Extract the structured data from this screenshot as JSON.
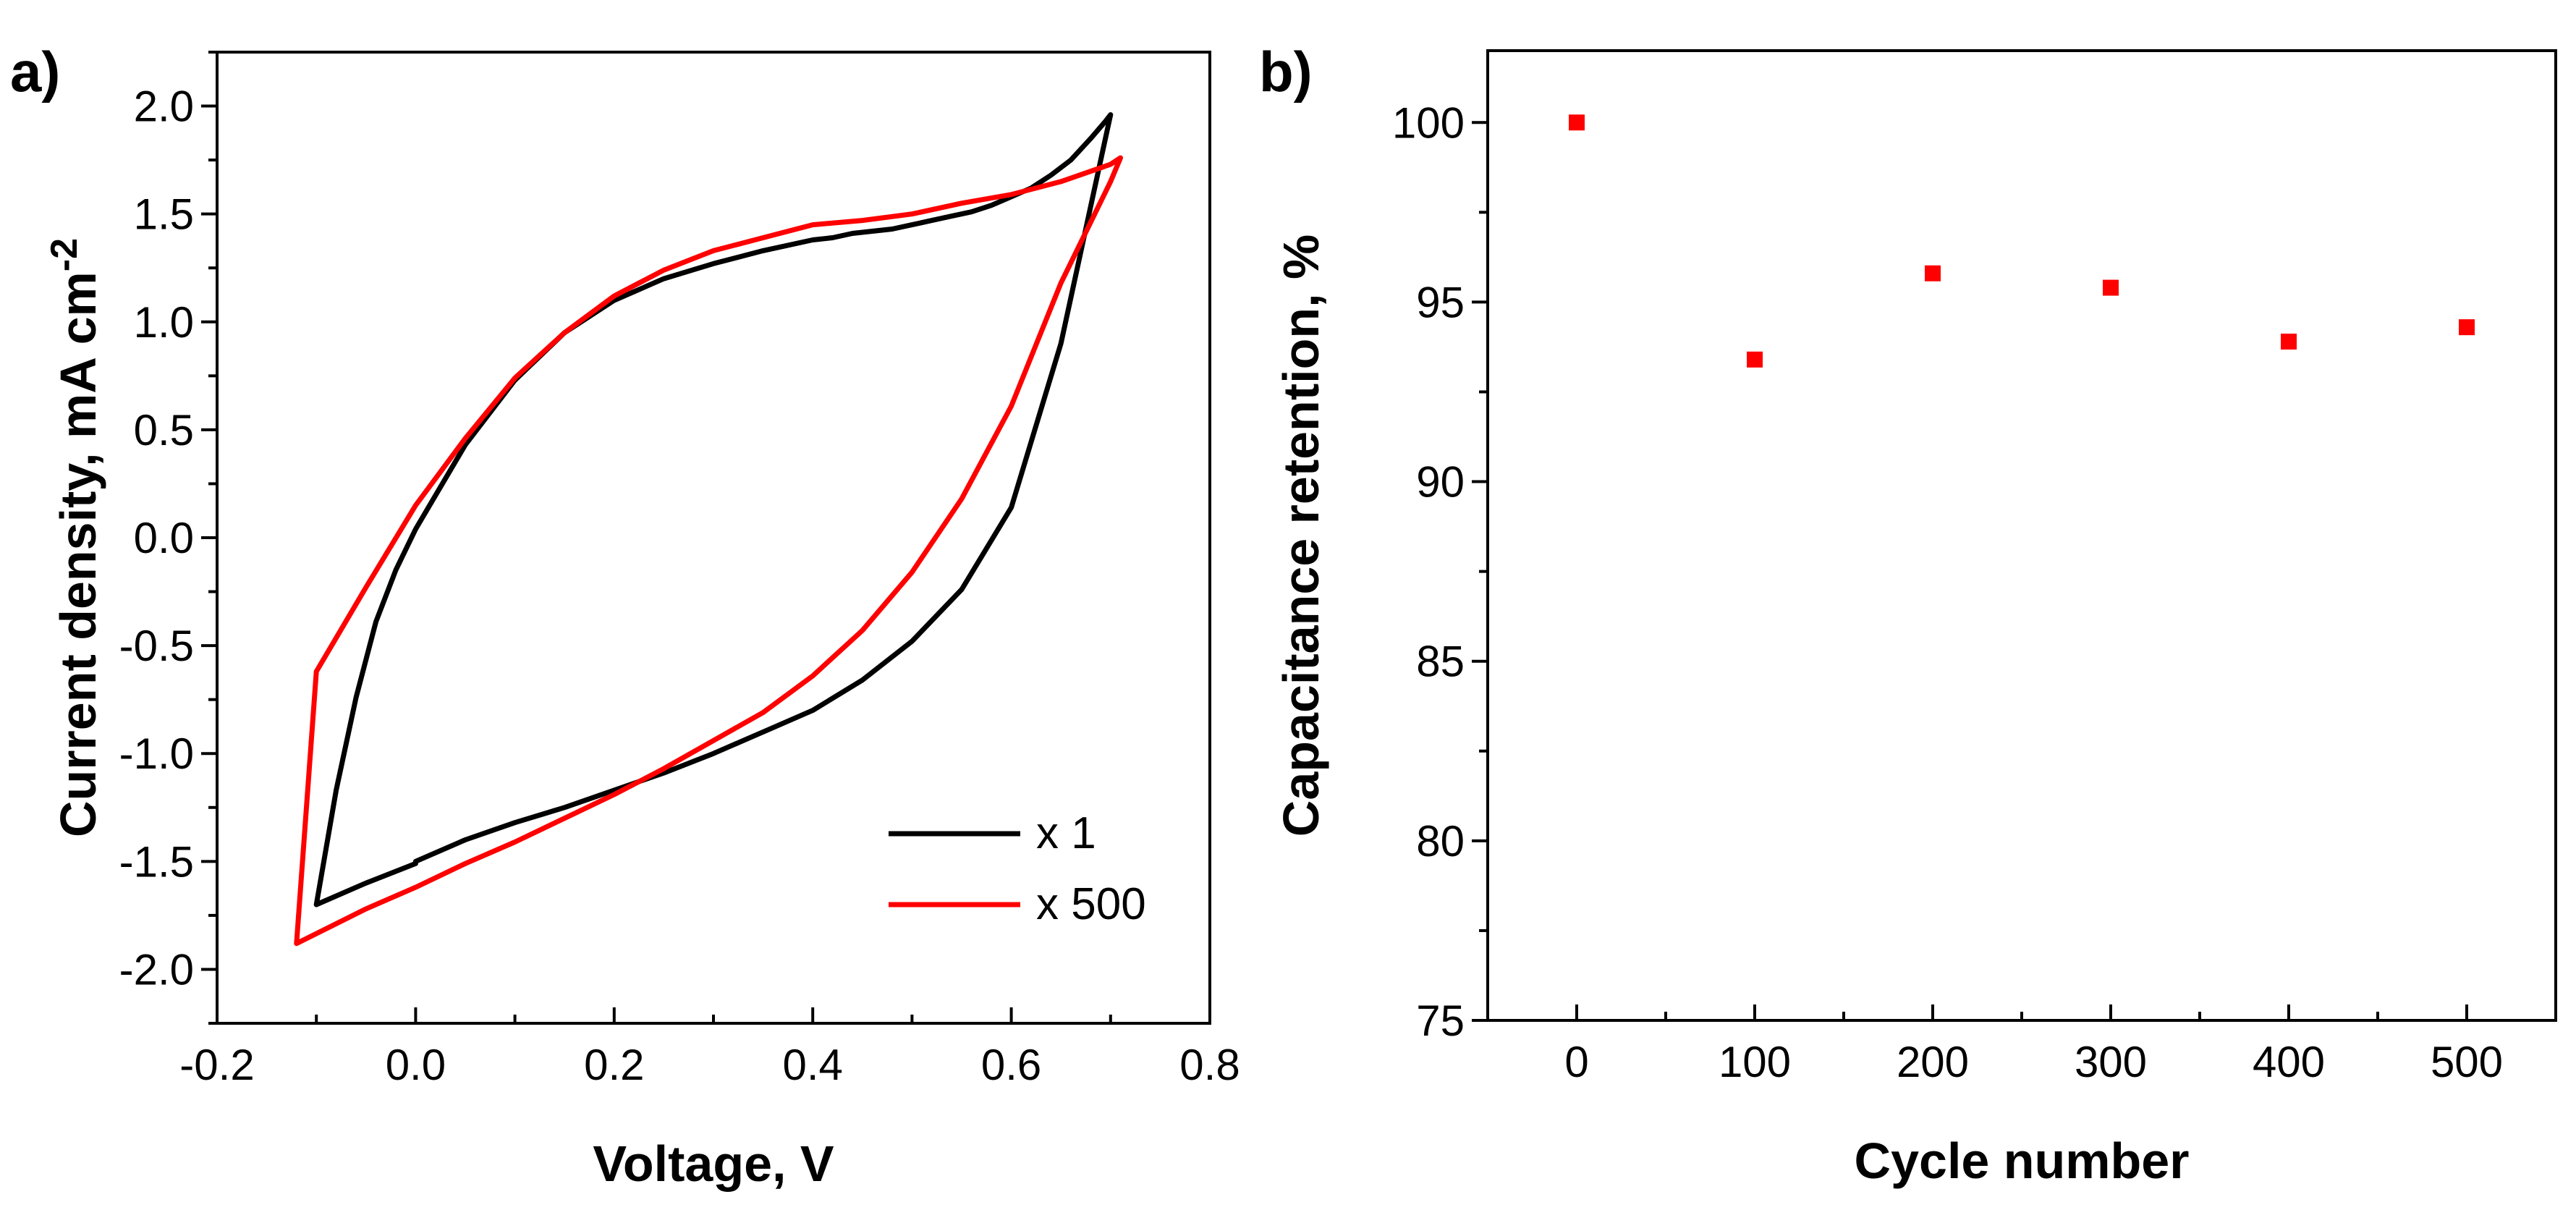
{
  "chart_data": [
    {
      "panel_label": "a)",
      "type": "line",
      "title": "",
      "xlabel": "Voltage, V",
      "ylabel_main": "Current density, mA cm",
      "ylabel_sup": "-2",
      "xlim": [
        -0.2,
        0.8
      ],
      "ylim": [
        -2.25,
        2.25
      ],
      "xticks": [
        -0.2,
        0.0,
        0.2,
        0.4,
        0.6,
        0.8
      ],
      "xtick_labels": [
        "-0.2",
        "0.0",
        "0.2",
        "0.4",
        "0.6",
        "0.8"
      ],
      "yticks": [
        -2.0,
        -1.5,
        -1.0,
        -0.5,
        0.0,
        0.5,
        1.0,
        1.5,
        2.0
      ],
      "ytick_labels": [
        "-2.0",
        "-1.5",
        "-1.0",
        "-0.5",
        "0.0",
        "0.5",
        "1.0",
        "1.5",
        "2.0"
      ],
      "grid": false,
      "legend_position": "bottom-right",
      "series": [
        {
          "name": "x 1",
          "color": "#000000",
          "x": [
            0.0,
            0.05,
            0.1,
            0.15,
            0.2,
            0.25,
            0.3,
            0.35,
            0.4,
            0.45,
            0.5,
            0.55,
            0.6,
            0.65,
            0.7,
            0.695,
            0.68,
            0.66,
            0.64,
            0.62,
            0.6,
            0.58,
            0.56,
            0.54,
            0.52,
            0.5,
            0.48,
            0.46,
            0.44,
            0.42,
            0.4,
            0.35,
            0.3,
            0.25,
            0.2,
            0.15,
            0.1,
            0.05,
            0.0,
            -0.02,
            -0.04,
            -0.06,
            -0.08,
            -0.1,
            -0.05,
            0.0,
            0.0
          ],
          "y": [
            -1.5,
            -1.4,
            -1.32,
            -1.25,
            -1.17,
            -1.09,
            -1.0,
            -0.9,
            -0.8,
            -0.66,
            -0.48,
            -0.24,
            0.14,
            0.9,
            1.96,
            1.93,
            1.85,
            1.75,
            1.68,
            1.62,
            1.58,
            1.54,
            1.51,
            1.49,
            1.47,
            1.45,
            1.43,
            1.42,
            1.41,
            1.39,
            1.38,
            1.33,
            1.27,
            1.2,
            1.1,
            0.95,
            0.73,
            0.43,
            0.04,
            -0.15,
            -0.39,
            -0.74,
            -1.17,
            -1.7,
            -1.6,
            -1.51,
            -1.5
          ]
        },
        {
          "name": "x 500",
          "color": "#ff0000",
          "x": [
            -0.12,
            -0.05,
            0.0,
            0.05,
            0.1,
            0.15,
            0.2,
            0.25,
            0.3,
            0.35,
            0.4,
            0.45,
            0.5,
            0.55,
            0.6,
            0.65,
            0.7,
            0.71,
            0.7,
            0.65,
            0.6,
            0.55,
            0.5,
            0.45,
            0.4,
            0.35,
            0.3,
            0.25,
            0.2,
            0.15,
            0.1,
            0.05,
            0.0,
            -0.05,
            -0.1,
            -0.12
          ],
          "y": [
            -1.88,
            -1.72,
            -1.62,
            -1.51,
            -1.41,
            -1.3,
            -1.19,
            -1.07,
            -0.94,
            -0.81,
            -0.64,
            -0.43,
            -0.16,
            0.18,
            0.61,
            1.18,
            1.65,
            1.76,
            1.73,
            1.65,
            1.59,
            1.55,
            1.5,
            1.47,
            1.45,
            1.39,
            1.33,
            1.24,
            1.12,
            0.95,
            0.74,
            0.46,
            0.15,
            -0.23,
            -0.62,
            -1.88
          ]
        }
      ]
    },
    {
      "panel_label": "b)",
      "type": "scatter",
      "title": "",
      "xlabel": "Cycle number",
      "ylabel": "Capacitance retention, %",
      "xlim": [
        -50,
        550
      ],
      "ylim": [
        75,
        102
      ],
      "xticks": [
        0,
        100,
        200,
        300,
        400,
        500
      ],
      "xtick_labels": [
        "0",
        "100",
        "200",
        "300",
        "400",
        "500"
      ],
      "yticks": [
        75,
        80,
        85,
        90,
        95,
        100
      ],
      "ytick_labels": [
        "75",
        "80",
        "85",
        "90",
        "95",
        "100"
      ],
      "grid": false,
      "series": [
        {
          "name": "Capacitance retention",
          "color": "#ff0000",
          "marker": "square",
          "x": [
            0,
            100,
            200,
            300,
            400,
            500
          ],
          "y": [
            100.0,
            93.4,
            95.8,
            95.4,
            93.9,
            94.3
          ]
        }
      ]
    }
  ]
}
